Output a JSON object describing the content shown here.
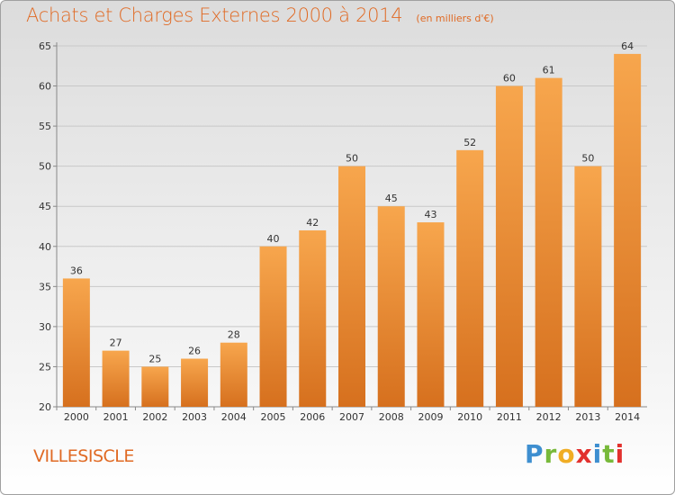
{
  "colors": {
    "bar_light": "#f7a64d",
    "bar_dark": "#d6701e",
    "title": "#e06a24",
    "grid": "#c8c8c8"
  },
  "place_name": "VILLESISCLE",
  "logo": {
    "p": "P",
    "r": "r",
    "o": "o",
    "x": "x",
    "i1": "i",
    "t": "t",
    "i2": "i"
  },
  "chart_data": {
    "type": "bar",
    "title": "Achats et Charges Externes 2000 à 2014",
    "unit": "(en milliers d'€)",
    "xlabel": "",
    "ylabel": "",
    "categories": [
      "2000",
      "2001",
      "2002",
      "2003",
      "2004",
      "2005",
      "2006",
      "2007",
      "2008",
      "2009",
      "2010",
      "2011",
      "2012",
      "2013",
      "2014"
    ],
    "values": [
      36,
      27,
      25,
      26,
      28,
      40,
      42,
      50,
      45,
      43,
      52,
      60,
      61,
      50,
      64
    ],
    "ylim": [
      20,
      65
    ],
    "yticks": [
      20,
      25,
      30,
      35,
      40,
      45,
      50,
      55,
      60,
      65
    ],
    "grid": true,
    "data_labels": true
  }
}
